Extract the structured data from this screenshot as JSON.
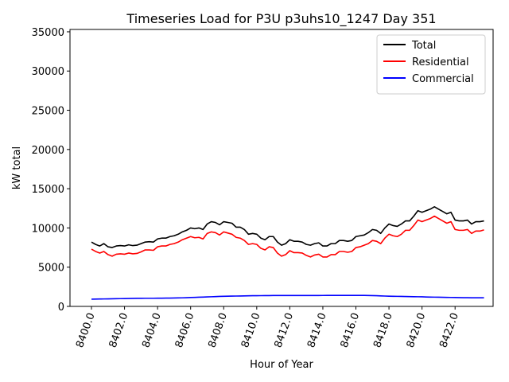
{
  "chart_data": {
    "type": "line",
    "title": "Timeseries Load for P3U p3uhs10_1247  Day 351",
    "xlabel": "Hour of Year",
    "ylabel": "kW total",
    "xlim": [
      8398.7,
      8424.3
    ],
    "ylim": [
      0,
      35300
    ],
    "x_ticks": [
      8400,
      8402,
      8404,
      8406,
      8408,
      8410,
      8412,
      8414,
      8416,
      8418,
      8420,
      8422
    ],
    "x_tick_labels": [
      "8400.0",
      "8402.0",
      "8404.0",
      "8406.0",
      "8408.0",
      "8410.0",
      "8412.0",
      "8414.0",
      "8416.0",
      "8418.0",
      "8420.0",
      "8422.0"
    ],
    "y_ticks": [
      0,
      5000,
      10000,
      15000,
      20000,
      25000,
      30000,
      35000
    ],
    "y_tick_labels": [
      "0",
      "5000",
      "10000",
      "15000",
      "20000",
      "25000",
      "30000",
      "35000"
    ],
    "legend_position": "top-right",
    "x": [
      8400.0,
      8400.25,
      8400.5,
      8400.75,
      8401.0,
      8401.25,
      8401.5,
      8401.75,
      8402.0,
      8402.25,
      8402.5,
      8402.75,
      8403.0,
      8403.25,
      8403.5,
      8403.75,
      8404.0,
      8404.25,
      8404.5,
      8404.75,
      8405.0,
      8405.25,
      8405.5,
      8405.75,
      8406.0,
      8406.25,
      8406.5,
      8406.75,
      8407.0,
      8407.25,
      8407.5,
      8407.75,
      8408.0,
      8408.25,
      8408.5,
      8408.75,
      8409.0,
      8409.25,
      8409.5,
      8409.75,
      8410.0,
      8410.25,
      8410.5,
      8410.75,
      8411.0,
      8411.25,
      8411.5,
      8411.75,
      8412.0,
      8412.25,
      8412.5,
      8412.75,
      8413.0,
      8413.25,
      8413.5,
      8413.75,
      8414.0,
      8414.25,
      8414.5,
      8414.75,
      8415.0,
      8415.25,
      8415.5,
      8415.75,
      8416.0,
      8416.25,
      8416.5,
      8416.75,
      8417.0,
      8417.25,
      8417.5,
      8417.75,
      8418.0,
      8418.25,
      8418.5,
      8418.75,
      8419.0,
      8419.25,
      8419.5,
      8419.75,
      8420.0,
      8420.25,
      8420.5,
      8420.75,
      8421.0,
      8421.25,
      8421.5,
      8421.75,
      8422.0,
      8422.25,
      8422.5,
      8422.75,
      8423.0,
      8423.25,
      8423.5,
      8423.75
    ],
    "series": [
      {
        "name": "Total",
        "color": "#000000",
        "values": [
          8200,
          7900,
          7700,
          8000,
          7600,
          7500,
          7700,
          7750,
          7700,
          7850,
          7750,
          7800,
          8000,
          8200,
          8250,
          8200,
          8600,
          8700,
          8700,
          8900,
          9000,
          9200,
          9500,
          9700,
          10000,
          9900,
          10000,
          9800,
          10500,
          10800,
          10700,
          10400,
          10800,
          10700,
          10600,
          10100,
          10100,
          9800,
          9200,
          9300,
          9200,
          8700,
          8500,
          8900,
          8900,
          8200,
          7800,
          8000,
          8500,
          8300,
          8300,
          8200,
          7900,
          7800,
          8000,
          8100,
          7700,
          7700,
          8000,
          8000,
          8400,
          8400,
          8300,
          8400,
          8900,
          9000,
          9100,
          9400,
          9800,
          9700,
          9300,
          10000,
          10500,
          10300,
          10200,
          10500,
          10900,
          10900,
          11500,
          12200,
          12000,
          12200,
          12400,
          12700,
          12400,
          12100,
          11800,
          12000,
          11000,
          10900,
          10900,
          11000,
          10500,
          10800,
          10800,
          10900
        ]
      },
      {
        "name": "Residential",
        "color": "#ff0000",
        "values": [
          7300,
          7000,
          6800,
          7000,
          6600,
          6400,
          6650,
          6700,
          6650,
          6800,
          6700,
          6750,
          6950,
          7200,
          7200,
          7150,
          7600,
          7700,
          7700,
          7900,
          8000,
          8200,
          8500,
          8700,
          8900,
          8750,
          8800,
          8600,
          9300,
          9500,
          9400,
          9100,
          9500,
          9350,
          9200,
          8800,
          8700,
          8400,
          7900,
          8000,
          7900,
          7400,
          7200,
          7600,
          7500,
          6800,
          6400,
          6600,
          7100,
          6850,
          6850,
          6800,
          6500,
          6300,
          6550,
          6650,
          6300,
          6300,
          6600,
          6600,
          7000,
          7000,
          6900,
          7000,
          7500,
          7600,
          7800,
          8000,
          8400,
          8300,
          8000,
          8700,
          9200,
          9000,
          8900,
          9200,
          9700,
          9700,
          10300,
          11000,
          10800,
          11000,
          11200,
          11500,
          11200,
          10900,
          10600,
          10800,
          9800,
          9700,
          9700,
          9800,
          9300,
          9600,
          9600,
          9750
        ]
      },
      {
        "name": "Commercial",
        "color": "#0000ff",
        "values": [
          920,
          930,
          940,
          950,
          960,
          970,
          980,
          990,
          1000,
          1010,
          1020,
          1030,
          1035,
          1040,
          1040,
          1040,
          1045,
          1050,
          1055,
          1060,
          1070,
          1080,
          1090,
          1110,
          1130,
          1150,
          1170,
          1190,
          1210,
          1230,
          1250,
          1270,
          1290,
          1300,
          1310,
          1320,
          1330,
          1340,
          1350,
          1360,
          1365,
          1370,
          1375,
          1380,
          1385,
          1390,
          1390,
          1390,
          1390,
          1390,
          1390,
          1390,
          1390,
          1390,
          1390,
          1390,
          1395,
          1400,
          1400,
          1400,
          1400,
          1400,
          1400,
          1400,
          1400,
          1400,
          1400,
          1390,
          1380,
          1360,
          1340,
          1320,
          1300,
          1290,
          1280,
          1270,
          1260,
          1250,
          1240,
          1230,
          1220,
          1200,
          1190,
          1180,
          1170,
          1160,
          1150,
          1140,
          1130,
          1120,
          1110,
          1110,
          1100,
          1100,
          1100,
          1100
        ]
      }
    ]
  }
}
